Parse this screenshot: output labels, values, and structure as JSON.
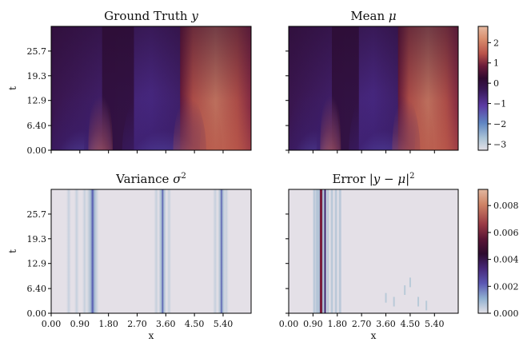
{
  "chart_data": [
    {
      "type": "heatmap",
      "id": "ground_truth",
      "title": "Ground Truth y",
      "title_parts": [
        {
          "text": "Ground Truth ",
          "italic": false
        },
        {
          "text": "y",
          "italic": true
        }
      ],
      "xlabel": "",
      "ylabel": "t",
      "xlim": [
        0.0,
        6.28
      ],
      "ylim": [
        0.0,
        32.1
      ],
      "yticks": [
        0.0,
        6.4,
        12.9,
        19.3,
        25.7
      ],
      "ytick_labels": [
        "0.00",
        "6.40",
        "12.9",
        "19.3",
        "25.7"
      ],
      "xticks": [
        0.0,
        0.9,
        1.8,
        2.7,
        3.6,
        4.5,
        5.4
      ],
      "xtick_labels": [],
      "colormap": "twilight_shifted",
      "low_value_positions_at_t0": [
        0.9,
        1.35,
        3.6,
        4.6,
        5.4
      ]
    },
    {
      "type": "heatmap",
      "id": "mean",
      "title": "Mean μ",
      "title_parts": [
        {
          "text": "Mean ",
          "italic": false
        },
        {
          "text": "μ",
          "italic": true
        }
      ],
      "xlabel": "",
      "ylabel": "",
      "xlim": [
        0.0,
        6.28
      ],
      "ylim": [
        0.0,
        32.1
      ],
      "yticks": [
        0.0,
        6.4,
        12.9,
        19.3,
        25.7
      ],
      "ytick_labels": [],
      "xticks": [
        0.0,
        0.9,
        1.8,
        2.7,
        3.6,
        4.5,
        5.4
      ],
      "xtick_labels": [],
      "colormap": "twilight_shifted",
      "colorbar": {
        "ticks": [
          2,
          1,
          0,
          -1,
          -2,
          -3
        ],
        "tick_labels": [
          "2",
          "1",
          "0",
          "−1",
          "−2",
          "−3"
        ],
        "range": [
          -3.3,
          2.8
        ]
      }
    },
    {
      "type": "heatmap",
      "id": "variance",
      "title": "Variance σ²",
      "title_parts": [
        {
          "text": "Variance ",
          "italic": false
        },
        {
          "text": "σ",
          "italic": true
        },
        {
          "text": "2",
          "superscript": true
        }
      ],
      "xlabel": "x",
      "ylabel": "t",
      "xlim": [
        0.0,
        6.28
      ],
      "ylim": [
        0.0,
        32.1
      ],
      "yticks": [
        0.0,
        6.4,
        12.9,
        19.3,
        25.7
      ],
      "ytick_labels": [
        "0.00",
        "6.40",
        "12.9",
        "19.3",
        "25.7"
      ],
      "xticks": [
        0.0,
        0.9,
        1.8,
        2.7,
        3.6,
        4.5,
        5.4
      ],
      "xtick_labels": [
        "0.00",
        "0.90",
        "1.80",
        "2.70",
        "3.60",
        "4.50",
        "5.40"
      ],
      "colormap": "twilight_shifted",
      "high_variance_bands_x": [
        1.3,
        3.5,
        5.35
      ]
    },
    {
      "type": "heatmap",
      "id": "error",
      "title": "Error |y − μ|²",
      "title_parts": [
        {
          "text": "Error |",
          "italic": false
        },
        {
          "text": "y",
          "italic": true
        },
        {
          "text": " − ",
          "italic": false
        },
        {
          "text": "μ",
          "italic": true
        },
        {
          "text": "|",
          "italic": false
        },
        {
          "text": "2",
          "superscript": true
        }
      ],
      "xlabel": "x",
      "ylabel": "",
      "xlim": [
        0.0,
        6.28
      ],
      "ylim": [
        0.0,
        32.1
      ],
      "yticks": [
        0.0,
        6.4,
        12.9,
        19.3,
        25.7
      ],
      "ytick_labels": [],
      "xticks": [
        0.0,
        0.9,
        1.8,
        2.7,
        3.6,
        4.5,
        5.4
      ],
      "xtick_labels": [
        "0.00",
        "0.90",
        "1.80",
        "2.70",
        "3.60",
        "4.50",
        "5.40"
      ],
      "colormap": "twilight_shifted",
      "high_error_band_x": 1.2,
      "colorbar": {
        "ticks": [
          0.008,
          0.006,
          0.004,
          0.002,
          0.0
        ],
        "tick_labels": [
          "0.008",
          "0.006",
          "0.004",
          "0.002",
          "0.000"
        ],
        "range": [
          0.0,
          0.0092
        ]
      }
    }
  ]
}
